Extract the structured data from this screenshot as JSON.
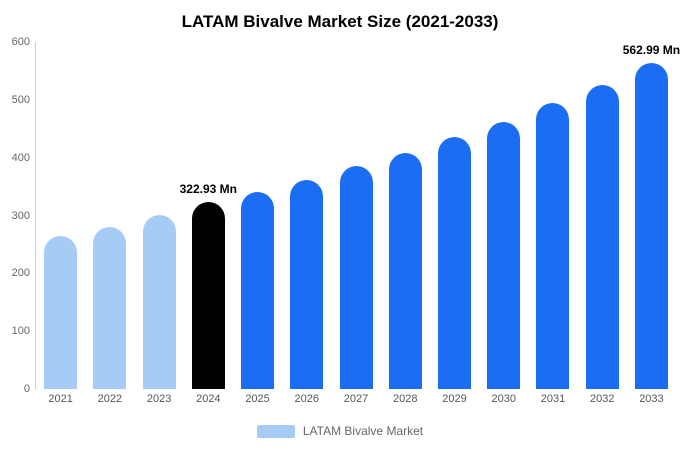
{
  "chart_data": {
    "type": "bar",
    "title": "LATAM Bivalve Market Size (2021-2033)",
    "categories": [
      "2021",
      "2022",
      "2023",
      "2024",
      "2025",
      "2026",
      "2027",
      "2028",
      "2029",
      "2030",
      "2031",
      "2032",
      "2033"
    ],
    "values": [
      264,
      281,
      301,
      322.93,
      341,
      361,
      385,
      409,
      435,
      462,
      494,
      525,
      562.99
    ],
    "bar_colors": [
      "#A6CCF5",
      "#A6CCF5",
      "#A6CCF5",
      "#000000",
      "#1B6EF3",
      "#1B6EF3",
      "#1B6EF3",
      "#1B6EF3",
      "#1B6EF3",
      "#1B6EF3",
      "#1B6EF3",
      "#1B6EF3",
      "#1B6EF3"
    ],
    "annotations": [
      {
        "index": 3,
        "text": "322.93 Mn"
      },
      {
        "index": 12,
        "text": "562.99 Mn"
      }
    ],
    "xlabel": "",
    "ylabel": "",
    "ylim": [
      0,
      600
    ],
    "yticks": [
      0,
      100,
      200,
      300,
      400,
      500,
      600
    ],
    "grid": false,
    "legend_position": "bottom",
    "legend": [
      {
        "label": "LATAM Bivalve Market",
        "color": "#A6CCF5"
      }
    ]
  }
}
